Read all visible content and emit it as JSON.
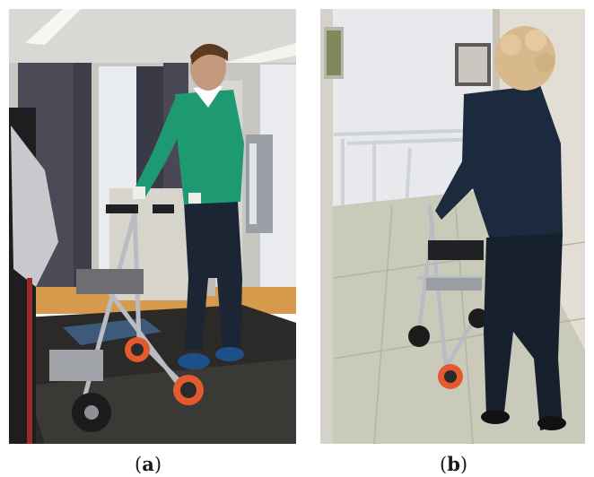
{
  "figure": {
    "panels": [
      {
        "id": "a",
        "label": "a",
        "scene": "lab-treadmill-walker"
      },
      {
        "id": "b",
        "label": "b",
        "scene": "corridor-walker"
      }
    ]
  },
  "colors": {
    "background": "#ffffff",
    "sweater": "#1e9a72",
    "jeans": "#1c2533",
    "wheel_orange": "#e35a2f",
    "walker_frame": "#b9bcc2"
  }
}
